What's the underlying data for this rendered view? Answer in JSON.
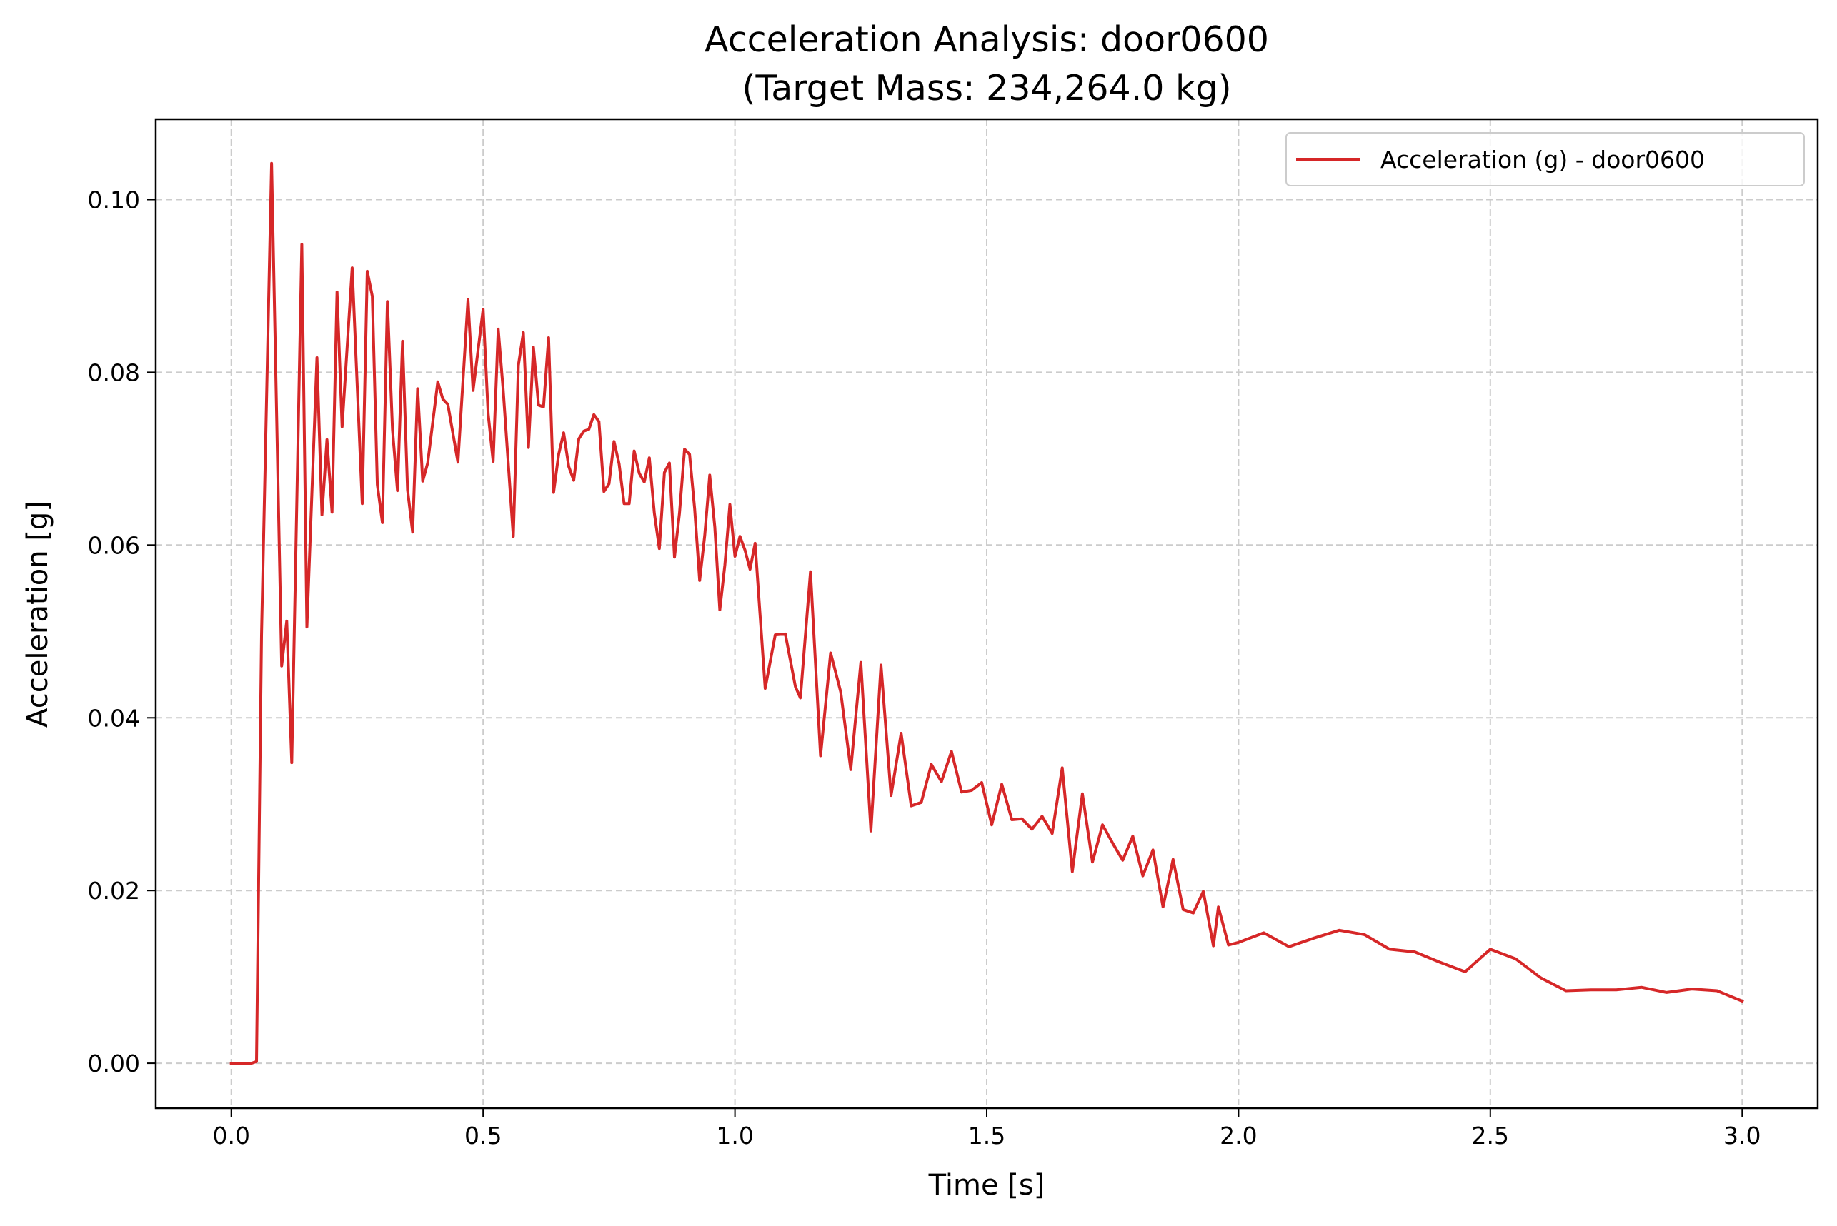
{
  "chart_data": {
    "type": "line",
    "title": "Acceleration Analysis: door0600",
    "subtitle": "(Target Mass: 234,264.0 kg)",
    "xlabel": "Time [s]",
    "ylabel": "Acceleration [g]",
    "xlim": [
      -0.15,
      3.15
    ],
    "ylim": [
      -0.0052,
      0.1093
    ],
    "xticks": [
      0.0,
      0.5,
      1.0,
      1.5,
      2.0,
      2.5,
      3.0
    ],
    "xtick_labels": [
      "0.0",
      "0.5",
      "1.0",
      "1.5",
      "2.0",
      "2.5",
      "3.0"
    ],
    "yticks": [
      0.0,
      0.02,
      0.04,
      0.06,
      0.08,
      0.1
    ],
    "ytick_labels": [
      "0.00",
      "0.02",
      "0.04",
      "0.06",
      "0.08",
      "0.10"
    ],
    "grid": true,
    "legend_position": "top-right",
    "series": [
      {
        "name": "Acceleration (g) - door0600",
        "color": "#d62728",
        "x": [
          0.0,
          0.04,
          0.05,
          0.06,
          0.08,
          0.1,
          0.11,
          0.12,
          0.14,
          0.15,
          0.17,
          0.18,
          0.19,
          0.2,
          0.21,
          0.22,
          0.24,
          0.26,
          0.27,
          0.28,
          0.29,
          0.3,
          0.31,
          0.32,
          0.33,
          0.34,
          0.35,
          0.36,
          0.37,
          0.38,
          0.39,
          0.41,
          0.42,
          0.43,
          0.45,
          0.47,
          0.48,
          0.5,
          0.51,
          0.52,
          0.53,
          0.54,
          0.56,
          0.57,
          0.58,
          0.59,
          0.6,
          0.61,
          0.62,
          0.63,
          0.64,
          0.65,
          0.66,
          0.67,
          0.68,
          0.69,
          0.7,
          0.71,
          0.72,
          0.73,
          0.74,
          0.75,
          0.76,
          0.77,
          0.78,
          0.79,
          0.8,
          0.81,
          0.82,
          0.83,
          0.84,
          0.85,
          0.86,
          0.87,
          0.88,
          0.89,
          0.9,
          0.91,
          0.92,
          0.93,
          0.94,
          0.95,
          0.96,
          0.97,
          0.98,
          0.99,
          1.0,
          1.01,
          1.02,
          1.03,
          1.04,
          1.06,
          1.08,
          1.1,
          1.12,
          1.13,
          1.15,
          1.17,
          1.19,
          1.21,
          1.23,
          1.25,
          1.27,
          1.29,
          1.31,
          1.33,
          1.35,
          1.37,
          1.39,
          1.41,
          1.43,
          1.45,
          1.47,
          1.49,
          1.51,
          1.53,
          1.55,
          1.57,
          1.59,
          1.61,
          1.63,
          1.65,
          1.67,
          1.69,
          1.71,
          1.73,
          1.75,
          1.77,
          1.79,
          1.81,
          1.83,
          1.85,
          1.87,
          1.89,
          1.91,
          1.93,
          1.95,
          1.96,
          1.98,
          2.0,
          2.05,
          2.1,
          2.15,
          2.2,
          2.25,
          2.3,
          2.35,
          2.4,
          2.45,
          2.5,
          2.55,
          2.6,
          2.65,
          2.7,
          2.75,
          2.8,
          2.85,
          2.9,
          2.95,
          3.0
        ],
        "y": [
          0.0,
          0.0,
          0.0002,
          0.0495,
          0.1042,
          0.046,
          0.0512,
          0.0348,
          0.0948,
          0.0505,
          0.0817,
          0.0635,
          0.0722,
          0.0638,
          0.0893,
          0.0737,
          0.0921,
          0.0648,
          0.0917,
          0.0888,
          0.067,
          0.0626,
          0.0882,
          0.0734,
          0.0663,
          0.0836,
          0.0664,
          0.0615,
          0.0781,
          0.0674,
          0.0695,
          0.0789,
          0.0769,
          0.0763,
          0.0696,
          0.0884,
          0.0779,
          0.0873,
          0.0752,
          0.0697,
          0.085,
          0.0779,
          0.061,
          0.0808,
          0.0846,
          0.0713,
          0.0829,
          0.0762,
          0.076,
          0.084,
          0.0661,
          0.0705,
          0.073,
          0.0691,
          0.0675,
          0.0723,
          0.0732,
          0.0734,
          0.0751,
          0.0743,
          0.0662,
          0.0671,
          0.072,
          0.0694,
          0.0648,
          0.0648,
          0.0709,
          0.0683,
          0.0673,
          0.0701,
          0.0637,
          0.0596,
          0.0684,
          0.0695,
          0.0586,
          0.0637,
          0.0711,
          0.0705,
          0.0642,
          0.0559,
          0.0611,
          0.0681,
          0.0621,
          0.0525,
          0.0577,
          0.0647,
          0.0587,
          0.061,
          0.0594,
          0.0572,
          0.0602,
          0.0434,
          0.0496,
          0.0497,
          0.0436,
          0.0423,
          0.0569,
          0.0356,
          0.0475,
          0.043,
          0.034,
          0.0464,
          0.0269,
          0.0461,
          0.031,
          0.0382,
          0.0298,
          0.0302,
          0.0346,
          0.0326,
          0.0361,
          0.0314,
          0.0316,
          0.0325,
          0.0276,
          0.0323,
          0.0282,
          0.0283,
          0.0271,
          0.0286,
          0.0266,
          0.0342,
          0.0222,
          0.0312,
          0.0233,
          0.0276,
          0.0255,
          0.0235,
          0.0263,
          0.0217,
          0.0247,
          0.0181,
          0.0236,
          0.0178,
          0.0174,
          0.0199,
          0.0136,
          0.0181,
          0.0137,
          0.014,
          0.0151,
          0.0135,
          0.0145,
          0.0154,
          0.0149,
          0.0132,
          0.0129,
          0.0117,
          0.0106,
          0.0132,
          0.0121,
          0.0099,
          0.0084,
          0.0085,
          0.0085,
          0.0088,
          0.0082,
          0.0086,
          0.0084,
          0.0072
        ]
      }
    ]
  }
}
